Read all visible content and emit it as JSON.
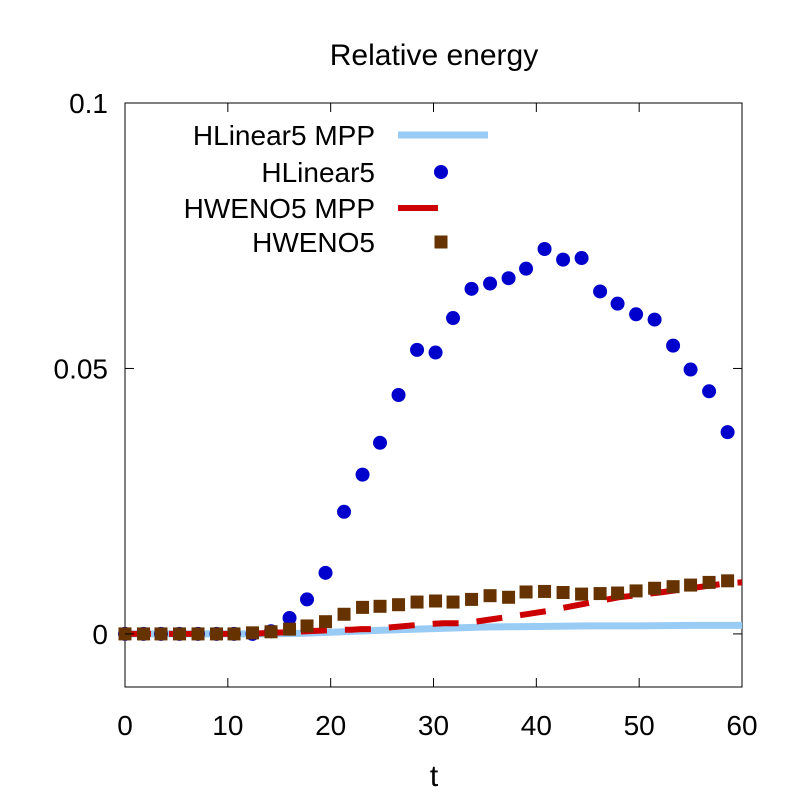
{
  "chart_data": {
    "type": "scatter",
    "title": "Relative energy",
    "xlabel": "t",
    "ylabel": "",
    "xlim": [
      0,
      60
    ],
    "ylim": [
      -0.01,
      0.1
    ],
    "grid": false,
    "legend_position": "top-left",
    "x_ticks": [
      0,
      10,
      20,
      30,
      40,
      50,
      60
    ],
    "x_tick_labels": [
      "0",
      "10",
      "20",
      "30",
      "40",
      "50",
      "60"
    ],
    "y_ticks": [
      0,
      0.05,
      0.1
    ],
    "y_tick_labels": [
      "0",
      "0.05",
      "0.1"
    ],
    "series": [
      {
        "name": "HLinear5 MPP",
        "style": "line",
        "color": "#99ccf5",
        "x": [
          0,
          10,
          14,
          17,
          20,
          25,
          30,
          35,
          40,
          45,
          50,
          55,
          60
        ],
        "y": [
          0,
          0,
          0,
          0.0001,
          0.0003,
          0.0007,
          0.001,
          0.0013,
          0.0014,
          0.0015,
          0.0015,
          0.0016,
          0.0016
        ]
      },
      {
        "name": "HLinear5",
        "style": "circle",
        "color": "#0000cc",
        "x": [
          0,
          1.8,
          3.5,
          5.3,
          7.1,
          8.9,
          10.6,
          12.4,
          14.2,
          16.0,
          17.7,
          19.5,
          21.3,
          23.1,
          24.8,
          26.6,
          28.4,
          30.2,
          31.9,
          33.7,
          35.5,
          37.3,
          39.0,
          40.8,
          42.6,
          44.4,
          46.2,
          47.9,
          49.7,
          51.5,
          53.3,
          55.0,
          56.8,
          58.6
        ],
        "y": [
          0,
          0,
          0,
          0,
          0,
          0,
          0,
          0,
          0.0005,
          0.003,
          0.0065,
          0.0115,
          0.023,
          0.03,
          0.036,
          0.045,
          0.0535,
          0.053,
          0.0595,
          0.065,
          0.066,
          0.067,
          0.0688,
          0.0725,
          0.0705,
          0.0708,
          0.0645,
          0.0622,
          0.0602,
          0.0592,
          0.0543,
          0.0498,
          0.0457,
          0.038
        ]
      },
      {
        "name": "HWENO5 MPP",
        "style": "dash",
        "color": "#cc0000",
        "x": [
          0,
          2,
          4,
          6,
          8,
          10,
          12,
          20,
          21,
          22,
          23,
          24,
          29,
          30,
          31,
          32,
          33,
          39,
          40,
          41,
          42,
          48,
          49,
          50,
          51,
          52,
          58,
          59,
          60
        ],
        "y": [
          0,
          0,
          0,
          0,
          0,
          0,
          0,
          0.0007,
          0.0008,
          0.0008,
          0.0009,
          0.0009,
          0.0018,
          0.0019,
          0.002,
          0.002,
          0.002,
          0.0037,
          0.004,
          0.0043,
          0.0047,
          0.0069,
          0.0071,
          0.0074,
          0.0076,
          0.0078,
          0.0094,
          0.0096,
          0.0097
        ]
      },
      {
        "name": "HWENO5",
        "style": "square",
        "color": "#663300",
        "x": [
          0,
          1.8,
          3.5,
          5.3,
          7.1,
          8.9,
          10.6,
          12.4,
          14.2,
          16.0,
          17.7,
          19.5,
          21.3,
          23.1,
          24.8,
          26.6,
          28.4,
          30.2,
          31.9,
          33.7,
          35.5,
          37.3,
          39.0,
          40.8,
          42.6,
          44.4,
          46.2,
          47.9,
          49.7,
          51.5,
          53.3,
          55.0,
          56.8,
          58.6
        ],
        "y": [
          0,
          0,
          0,
          0,
          0,
          0,
          0,
          0.0002,
          0.0004,
          0.0009,
          0.0015,
          0.0023,
          0.0037,
          0.005,
          0.0052,
          0.0055,
          0.006,
          0.0062,
          0.006,
          0.0065,
          0.0072,
          0.0069,
          0.0079,
          0.008,
          0.0078,
          0.0075,
          0.0076,
          0.0077,
          0.0081,
          0.0086,
          0.0089,
          0.0092,
          0.0097,
          0.01
        ]
      }
    ]
  }
}
